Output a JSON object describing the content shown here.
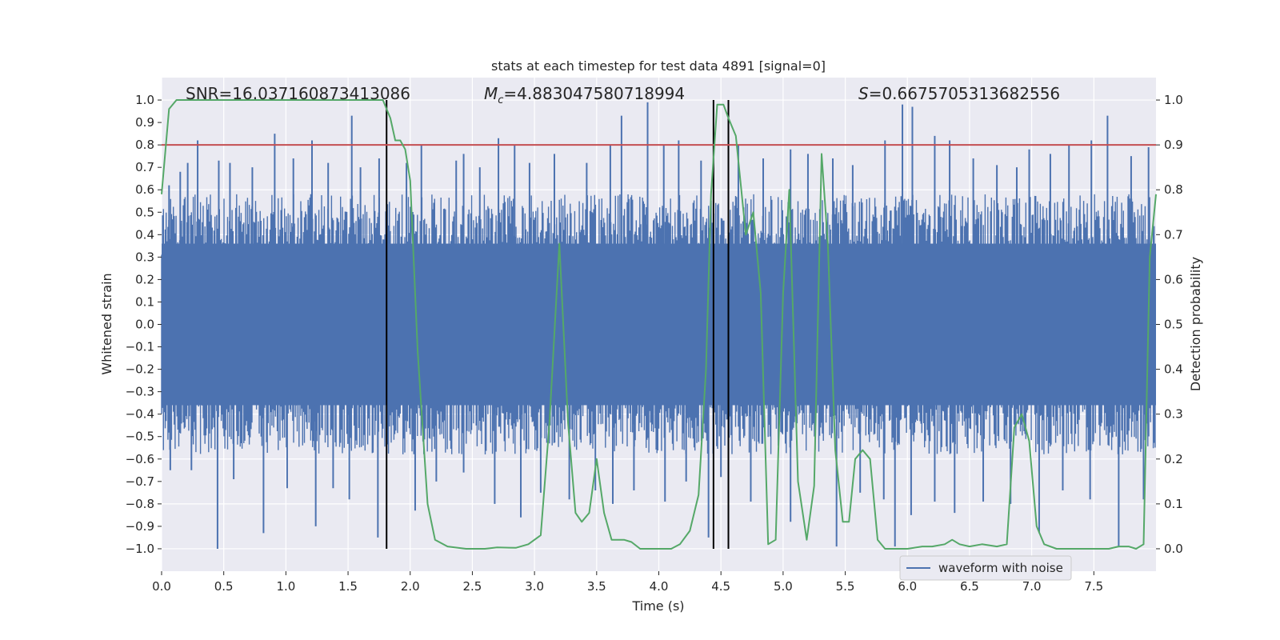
{
  "chart_data": {
    "type": "line",
    "title": "stats at each timestep for test data 4891 [signal=0]",
    "xlabel": "Time (s)",
    "ylabel_left": "Whitened strain",
    "ylabel_right": "Detection probability",
    "xlim": [
      0,
      8
    ],
    "ylim_left": [
      -1.1,
      1.1
    ],
    "ylim_right": [
      -0.05,
      1.05
    ],
    "x_ticks": [
      "0.0",
      "0.5",
      "1.0",
      "1.5",
      "2.0",
      "2.5",
      "3.0",
      "3.5",
      "4.0",
      "4.5",
      "5.0",
      "5.5",
      "6.0",
      "6.5",
      "7.0",
      "7.5"
    ],
    "y_ticks_left": [
      "−1.0",
      "−0.9",
      "−0.8",
      "−0.7",
      "−0.6",
      "−0.5",
      "−0.4",
      "−0.3",
      "−0.2",
      "−0.1",
      "0.0",
      "0.1",
      "0.2",
      "0.3",
      "0.4",
      "0.5",
      "0.6",
      "0.7",
      "0.8",
      "0.9",
      "1.0"
    ],
    "y_ticks_right": [
      "0.0",
      "0.1",
      "0.2",
      "0.3",
      "0.4",
      "0.5",
      "0.6",
      "0.7",
      "0.8",
      "0.9",
      "1.0"
    ],
    "grid": true,
    "legend": {
      "placement": "lower-right",
      "entries": [
        "waveform with noise"
      ]
    },
    "annotations": {
      "snr": "SNR=16.037160873413086",
      "mc_symbol": "M",
      "mc_sub": "c",
      "mc_value": "=4.883047580718994",
      "s_symbol": "S",
      "s_value": "=0.6675705313682556"
    },
    "threshold": {
      "axis": "right",
      "value": 0.9,
      "color": "#c44e52"
    },
    "vertical_markers": [
      1.81,
      4.44,
      4.56
    ],
    "colors": {
      "waveform": "#4c72b0",
      "probability": "#55a868",
      "markers": "#000000",
      "background": "#eaeaf2"
    },
    "waveform_spikes": {
      "positive": [
        [
          0.06,
          0.62
        ],
        [
          0.15,
          0.68
        ],
        [
          0.21,
          0.72
        ],
        [
          0.29,
          0.82
        ],
        [
          0.46,
          0.73
        ],
        [
          0.55,
          0.72
        ],
        [
          0.73,
          0.7
        ],
        [
          0.91,
          0.85
        ],
        [
          1.06,
          0.74
        ],
        [
          1.21,
          0.82
        ],
        [
          1.34,
          0.72
        ],
        [
          1.53,
          0.93
        ],
        [
          1.6,
          0.7
        ],
        [
          1.75,
          0.74
        ],
        [
          1.97,
          0.72
        ],
        [
          2.09,
          0.8
        ],
        [
          2.37,
          0.73
        ],
        [
          2.43,
          0.76
        ],
        [
          2.56,
          0.7
        ],
        [
          2.71,
          0.83
        ],
        [
          2.84,
          0.8
        ],
        [
          2.96,
          0.72
        ],
        [
          3.16,
          0.76
        ],
        [
          3.42,
          0.72
        ],
        [
          3.61,
          0.8
        ],
        [
          3.7,
          0.93
        ],
        [
          3.91,
          0.99
        ],
        [
          4.04,
          0.8
        ],
        [
          4.16,
          0.82
        ],
        [
          4.34,
          0.73
        ],
        [
          4.64,
          0.8
        ],
        [
          4.84,
          0.74
        ],
        [
          5.06,
          0.78
        ],
        [
          5.2,
          0.76
        ],
        [
          5.4,
          0.74
        ],
        [
          5.56,
          0.71
        ],
        [
          5.82,
          0.82
        ],
        [
          5.96,
          0.98
        ],
        [
          6.04,
          0.97
        ],
        [
          6.22,
          0.84
        ],
        [
          6.34,
          0.82
        ],
        [
          6.53,
          0.74
        ],
        [
          6.72,
          0.71
        ],
        [
          6.88,
          0.7
        ],
        [
          6.98,
          0.78
        ],
        [
          7.15,
          0.76
        ],
        [
          7.3,
          0.8
        ],
        [
          7.48,
          0.82
        ],
        [
          7.61,
          0.93
        ],
        [
          7.8,
          0.75
        ],
        [
          7.94,
          0.79
        ]
      ],
      "negative": [
        [
          0.07,
          -0.65
        ],
        [
          0.24,
          -0.65
        ],
        [
          0.45,
          -1.0
        ],
        [
          0.58,
          -0.69
        ],
        [
          0.82,
          -0.93
        ],
        [
          1.01,
          -0.73
        ],
        [
          1.24,
          -0.9
        ],
        [
          1.38,
          -0.73
        ],
        [
          1.51,
          -0.78
        ],
        [
          1.74,
          -0.95
        ],
        [
          2.04,
          -0.83
        ],
        [
          2.21,
          -0.7
        ],
        [
          2.43,
          -0.66
        ],
        [
          2.68,
          -0.8
        ],
        [
          2.89,
          -0.86
        ],
        [
          3.05,
          -0.75
        ],
        [
          3.28,
          -0.78
        ],
        [
          3.49,
          -0.74
        ],
        [
          3.63,
          -0.8
        ],
        [
          3.8,
          -0.74
        ],
        [
          4.05,
          -0.79
        ],
        [
          4.22,
          -0.7
        ],
        [
          4.4,
          -0.95
        ],
        [
          4.5,
          -0.68
        ],
        [
          4.74,
          -0.79
        ],
        [
          5.06,
          -0.88
        ],
        [
          5.43,
          -0.99
        ],
        [
          5.62,
          -0.75
        ],
        [
          5.81,
          -0.78
        ],
        [
          5.9,
          -0.99
        ],
        [
          6.03,
          -0.85
        ],
        [
          6.22,
          -0.79
        ],
        [
          6.38,
          -0.84
        ],
        [
          6.61,
          -0.79
        ],
        [
          6.83,
          -0.8
        ],
        [
          7.06,
          -0.93
        ],
        [
          7.25,
          -0.74
        ],
        [
          7.47,
          -0.78
        ],
        [
          7.7,
          -0.99
        ],
        [
          7.9,
          -0.78
        ]
      ]
    },
    "series": [
      {
        "name": "waveform with noise",
        "axis": "left",
        "x_range": [
          0,
          8
        ],
        "noise_amplitude": 0.4
      },
      {
        "axis": "right",
        "x": [
          0.0,
          0.06,
          0.12,
          0.3,
          0.6,
          1.0,
          1.4,
          1.78,
          1.84,
          1.88,
          1.92,
          1.96,
          2.0,
          2.06,
          2.14,
          2.2,
          2.3,
          2.45,
          2.6,
          2.7,
          2.85,
          2.95,
          3.05,
          3.12,
          3.2,
          3.27,
          3.33,
          3.38,
          3.44,
          3.5,
          3.56,
          3.62,
          3.72,
          3.78,
          3.85,
          3.92,
          4.0,
          4.1,
          4.17,
          4.25,
          4.32,
          4.38,
          4.42,
          4.47,
          4.52,
          4.56,
          4.62,
          4.7,
          4.76,
          4.82,
          4.88,
          4.94,
          5.0,
          5.05,
          5.12,
          5.19,
          5.25,
          5.31,
          5.36,
          5.42,
          5.48,
          5.53,
          5.58,
          5.64,
          5.7,
          5.76,
          5.82,
          5.88,
          6.0,
          6.12,
          6.2,
          6.3,
          6.36,
          6.42,
          6.5,
          6.6,
          6.72,
          6.8,
          6.86,
          6.92,
          6.98,
          7.04,
          7.1,
          7.2,
          7.3,
          7.4,
          7.5,
          7.62,
          7.7,
          7.78,
          7.84,
          7.9,
          7.95,
          8.0
        ],
        "y": [
          0.79,
          0.98,
          1.0,
          1.0,
          1.0,
          1.0,
          1.0,
          1.0,
          0.96,
          0.91,
          0.91,
          0.89,
          0.82,
          0.44,
          0.1,
          0.02,
          0.005,
          0.0,
          0.0,
          0.003,
          0.002,
          0.01,
          0.03,
          0.28,
          0.68,
          0.28,
          0.08,
          0.06,
          0.08,
          0.2,
          0.08,
          0.02,
          0.02,
          0.015,
          0.0,
          0.0,
          0.0,
          0.0,
          0.01,
          0.04,
          0.12,
          0.4,
          0.79,
          0.99,
          0.99,
          0.96,
          0.92,
          0.7,
          0.75,
          0.57,
          0.01,
          0.02,
          0.57,
          0.8,
          0.15,
          0.02,
          0.14,
          0.88,
          0.68,
          0.22,
          0.06,
          0.06,
          0.2,
          0.22,
          0.2,
          0.02,
          0.0,
          0.0,
          0.0,
          0.005,
          0.005,
          0.01,
          0.02,
          0.01,
          0.005,
          0.01,
          0.005,
          0.01,
          0.27,
          0.3,
          0.24,
          0.05,
          0.01,
          0.0,
          0.0,
          0.0,
          0.0,
          0.0,
          0.005,
          0.005,
          0.0,
          0.01,
          0.65,
          0.79
        ]
      }
    ]
  }
}
